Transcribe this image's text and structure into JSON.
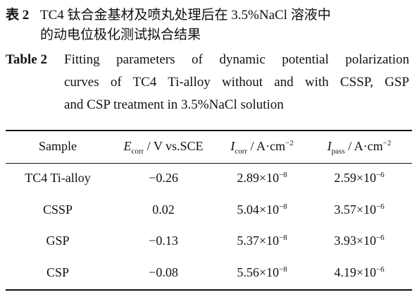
{
  "caption": {
    "cn_label": "表 2",
    "cn_text": [
      "TC4 钛合金基材及喷丸处理后在 3.5%NaCl 溶液中",
      "的动电位极化测试拟合结果"
    ],
    "en_label": "Table 2",
    "en_text": [
      "Fitting parameters of dynamic potential polarization",
      "curves of TC4 Ti-alloy without and with CSSP, GSP",
      "and CSP treatment in 3.5%NaCl solution"
    ]
  },
  "table": {
    "headers": [
      {
        "text": "Sample"
      },
      {
        "symbol": "E",
        "sub": "corr",
        "text": " / V vs.SCE"
      },
      {
        "symbol": "I",
        "sub": "corr",
        "text": " / A·cm",
        "sup": "−2"
      },
      {
        "symbol": "I",
        "sub": "pass",
        "text": " / A·cm",
        "sup": "−2"
      }
    ],
    "rows": [
      [
        {
          "text": "TC4 Ti-alloy"
        },
        {
          "text": "−0.26"
        },
        {
          "text": "2.89×10",
          "sup": "−8"
        },
        {
          "text": "2.59×10",
          "sup": "−6"
        }
      ],
      [
        {
          "text": "CSSP"
        },
        {
          "text": "0.02"
        },
        {
          "text": "5.04×10",
          "sup": "−8"
        },
        {
          "text": "3.57×10",
          "sup": "−6"
        }
      ],
      [
        {
          "text": "GSP"
        },
        {
          "text": "−0.13"
        },
        {
          "text": "5.37×10",
          "sup": "−8"
        },
        {
          "text": "3.93×10",
          "sup": "−6"
        }
      ],
      [
        {
          "text": "CSP"
        },
        {
          "text": "−0.08"
        },
        {
          "text": "5.56×10",
          "sup": "−8"
        },
        {
          "text": "4.19×10",
          "sup": "−6"
        }
      ]
    ]
  }
}
